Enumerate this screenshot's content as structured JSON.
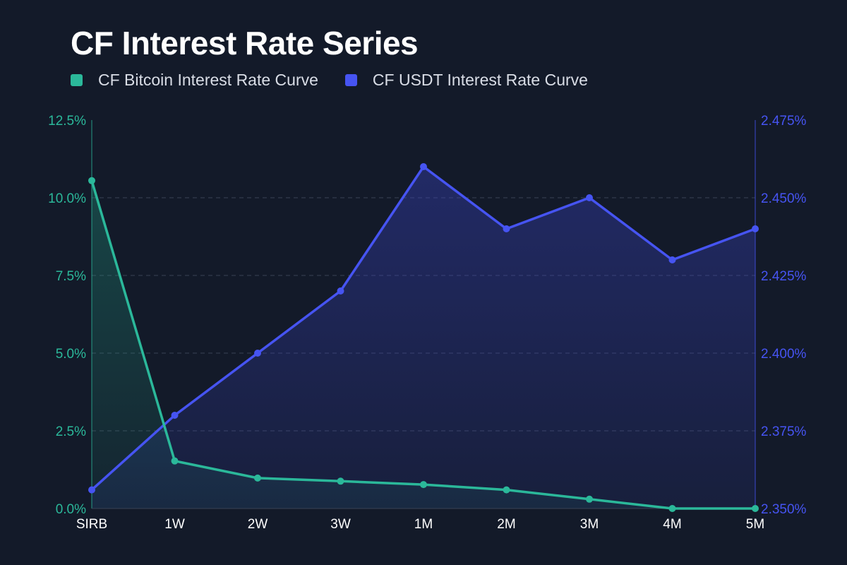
{
  "chart_data": {
    "type": "line",
    "title": "CF Interest Rate Series",
    "categories": [
      "SIRB",
      "1W",
      "2W",
      "3W",
      "1M",
      "2M",
      "3M",
      "4M",
      "5M"
    ],
    "series": [
      {
        "name": "CF Bitcoin Interest Rate Curve",
        "axis": "left",
        "color": "#2bb89a",
        "values": [
          10.55,
          1.53,
          0.98,
          0.88,
          0.77,
          0.6,
          0.3,
          0.0,
          0.0
        ]
      },
      {
        "name": "CF USDT Interest Rate Curve",
        "axis": "right",
        "color": "#4654f2",
        "values": [
          2.356,
          2.38,
          2.4,
          2.42,
          2.46,
          2.44,
          2.45,
          2.43,
          2.44
        ]
      }
    ],
    "y_left": {
      "range": [
        0,
        12.5
      ],
      "ticks": [
        "0.0%",
        "2.5%",
        "5.0%",
        "7.5%",
        "10.0%",
        "12.5%"
      ],
      "color": "#2bb89a"
    },
    "y_right": {
      "range": [
        2.35,
        2.475
      ],
      "ticks": [
        "2.350%",
        "2.375%",
        "2.400%",
        "2.425%",
        "2.450%",
        "2.475%"
      ],
      "color": "#4654f2"
    },
    "grid": true,
    "legend": "top-left"
  }
}
